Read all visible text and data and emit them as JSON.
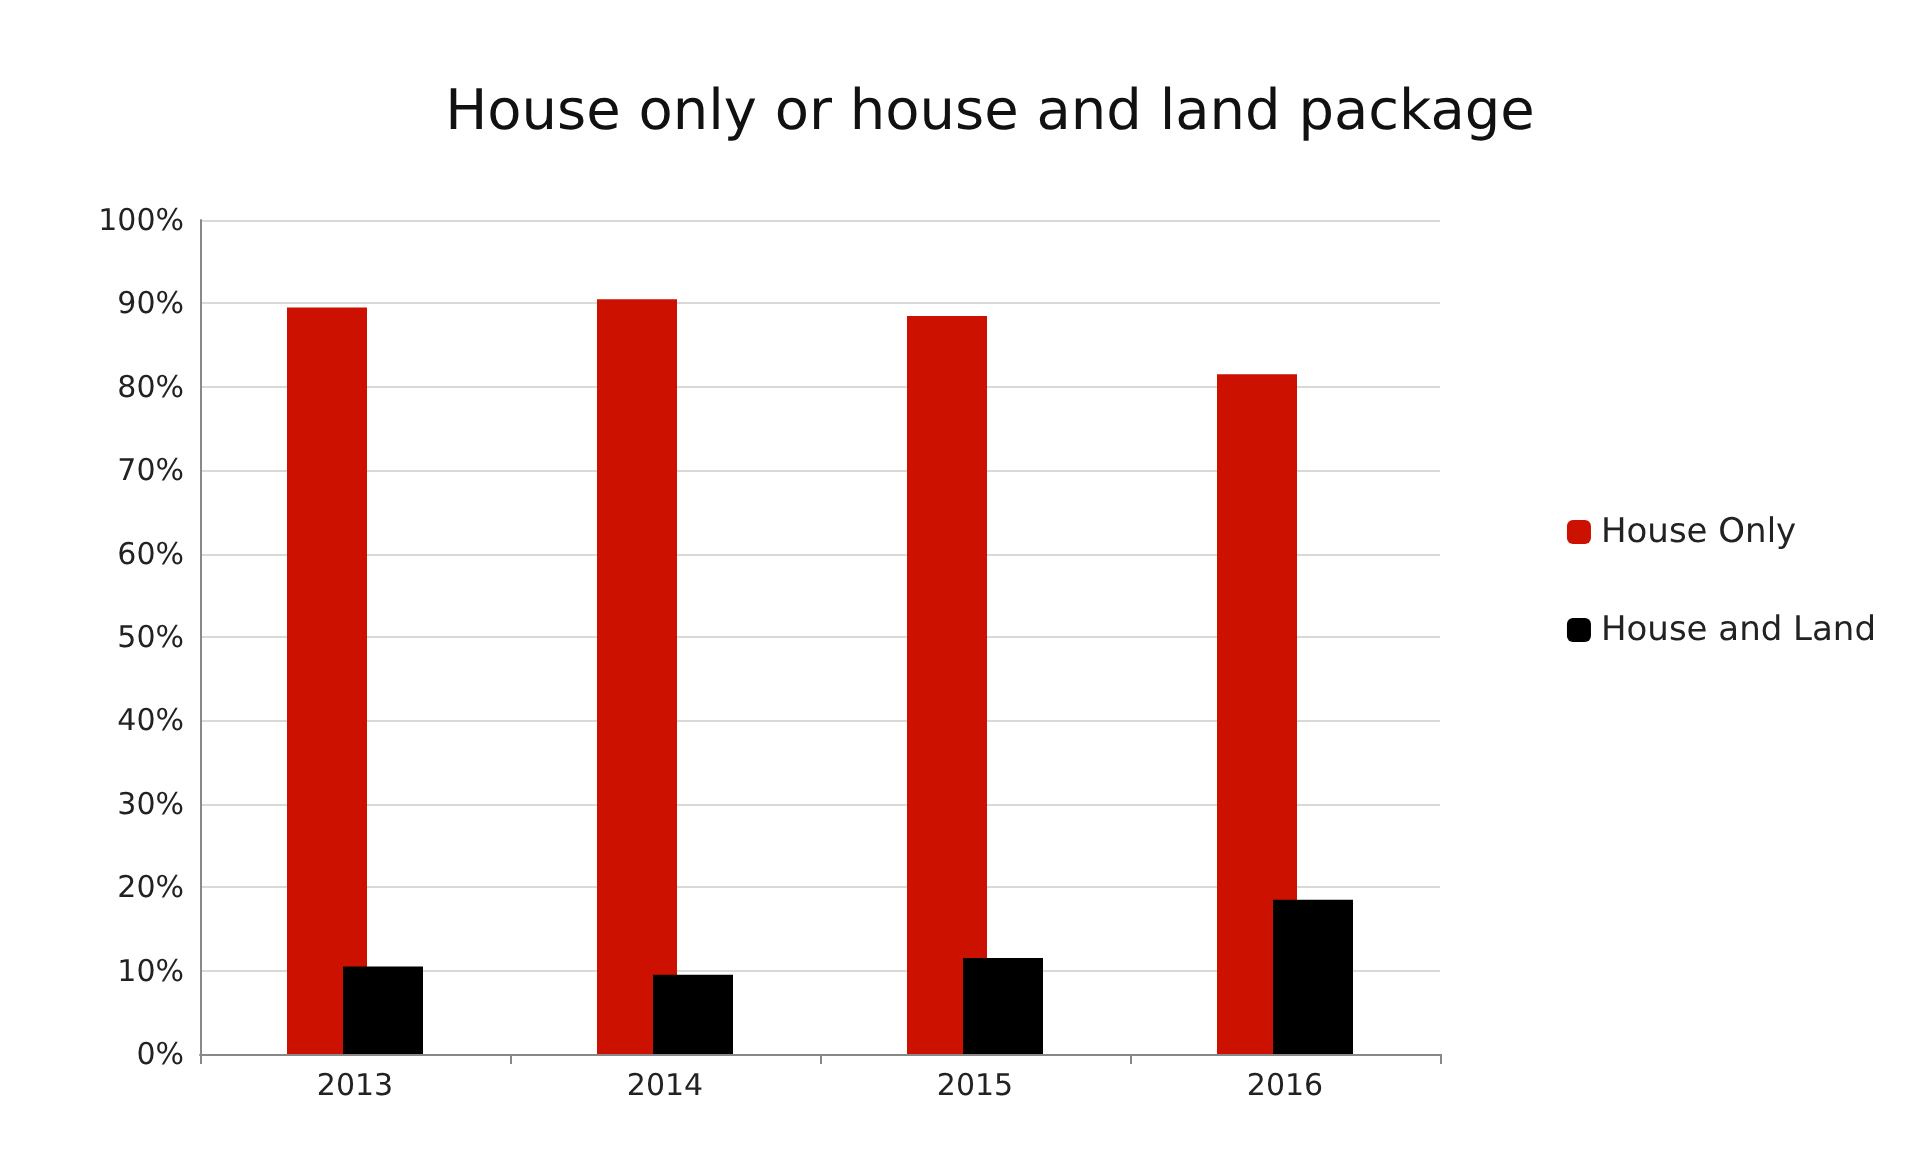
{
  "chart_data": {
    "type": "bar",
    "title": "House only or house and land package",
    "categories": [
      "2013",
      "2014",
      "2015",
      "2016"
    ],
    "series": [
      {
        "name": "House Only",
        "color": "#cc1100",
        "values": [
          89.5,
          90.5,
          88.5,
          81.5
        ]
      },
      {
        "name": "House and Land",
        "color": "#000000",
        "values": [
          10.5,
          9.5,
          11.5,
          18.5
        ]
      }
    ],
    "ylim": [
      0,
      100
    ],
    "yticks": [
      {
        "value": 0,
        "label": "0%"
      },
      {
        "value": 10,
        "label": "10%"
      },
      {
        "value": 20,
        "label": "20%"
      },
      {
        "value": 30,
        "label": "30%"
      },
      {
        "value": 40,
        "label": "40%"
      },
      {
        "value": 50,
        "label": "50%"
      },
      {
        "value": 60,
        "label": "60%"
      },
      {
        "value": 70,
        "label": "70%"
      },
      {
        "value": 80,
        "label": "80%"
      },
      {
        "value": 90,
        "label": "90%"
      },
      {
        "value": 100,
        "label": "100%"
      }
    ],
    "grid": "y",
    "legend": "right"
  }
}
